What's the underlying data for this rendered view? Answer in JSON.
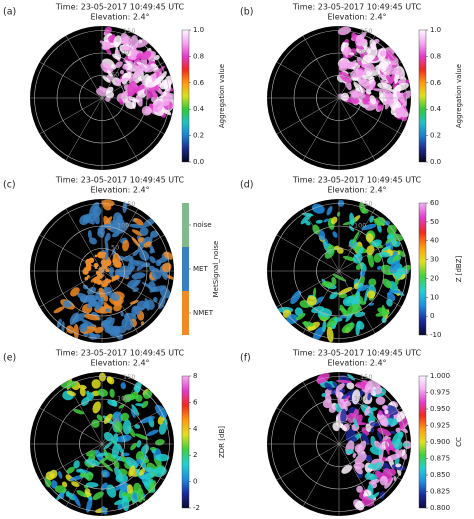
{
  "panels": [
    {
      "label": "(a)",
      "title": "Time: 23-05-2017 10:49:45 UTC",
      "subtitle": "Elevation: 2.4°",
      "rings": [
        50,
        100,
        150
      ],
      "rlim": [
        0,
        160
      ],
      "colorbar": {
        "label": "Aggregation value",
        "lim": [
          0,
          1
        ],
        "ticks": [
          {
            "value": 0,
            "label": "0.0"
          },
          {
            "value": 0.2,
            "label": "0.2"
          },
          {
            "value": 0.4,
            "label": "0.4"
          },
          {
            "value": 0.6,
            "label": "0.6"
          },
          {
            "value": 0.8,
            "label": "0.8"
          },
          {
            "value": 1,
            "label": "1.0"
          }
        ],
        "colors": [
          "#05051a",
          "#1c2a8c",
          "#1f7fd0",
          "#22c0c0",
          "#34c83c",
          "#d8e020",
          "#ff9a10",
          "#f02a20",
          "#e03cc8",
          "#f4a8f0",
          "#fff4ff"
        ]
      }
    },
    {
      "label": "(b)",
      "title": "Time: 23-05-2017 10:49:45 UTC",
      "subtitle": "Elevation: 2.4°",
      "rings": [
        50,
        100,
        150
      ],
      "rlim": [
        0,
        160
      ],
      "colorbar": {
        "label": "Aggregation value",
        "lim": [
          0,
          1
        ],
        "ticks": [
          {
            "value": 0,
            "label": "0.0"
          },
          {
            "value": 0.2,
            "label": "0.2"
          },
          {
            "value": 0.4,
            "label": "0.4"
          },
          {
            "value": 0.6,
            "label": "0.6"
          },
          {
            "value": 0.8,
            "label": "0.8"
          },
          {
            "value": 1,
            "label": "1.0"
          }
        ],
        "colors": [
          "#05051a",
          "#1c2a8c",
          "#1f7fd0",
          "#22c0c0",
          "#34c83c",
          "#d8e020",
          "#ff9a10",
          "#f02a20",
          "#e03cc8",
          "#f4a8f0",
          "#fff4ff"
        ]
      }
    },
    {
      "label": "(c)",
      "title": "Time: 23-05-2017 10:49:45 UTC",
      "subtitle": "Elevation: 2.4°",
      "rings": [
        50,
        100,
        150
      ],
      "rlim": [
        0,
        160
      ],
      "colorbar": {
        "label": "MetSignal_noise",
        "classes": [
          {
            "name": "NMET",
            "color": "#f08a24"
          },
          {
            "name": "MET",
            "color": "#3a7fc0"
          },
          {
            "name": "noise",
            "color": "#82b98a"
          }
        ]
      }
    },
    {
      "label": "(d)",
      "title": "Time: 23-05-2017 10:49:45 UTC",
      "subtitle": "Elevation: 2.4°",
      "rings": [
        50,
        100,
        150
      ],
      "rlim": [
        0,
        160
      ],
      "colorbar": {
        "label": "Z [dBZ]",
        "lim": [
          -10,
          60
        ],
        "ticks": [
          -10,
          0,
          10,
          20,
          30,
          40,
          50,
          60
        ],
        "colors": [
          "#0a0a30",
          "#1c2a9c",
          "#1f8fe0",
          "#22d0d0",
          "#40d040",
          "#e0e020",
          "#ff9a10",
          "#f02a20",
          "#e03cc8",
          "#f4b0f4"
        ]
      }
    },
    {
      "label": "(e)",
      "title": "Time: 23-05-2017 10:49:45 UTC",
      "subtitle": "Elevation: 2.4°",
      "rings": [
        50,
        100,
        150
      ],
      "rlim": [
        0,
        160
      ],
      "colorbar": {
        "label": "ZDR [dB]",
        "lim": [
          -2,
          8
        ],
        "ticks": [
          -2,
          0,
          2,
          4,
          6,
          8
        ],
        "colors": [
          "#0a0a30",
          "#1c2a9c",
          "#1f8fe0",
          "#22d0d0",
          "#40d040",
          "#e0e020",
          "#ff9a10",
          "#f02a20",
          "#e03cc8",
          "#f4b0f4"
        ]
      }
    },
    {
      "label": "(f)",
      "title": "Time: 23-05-2017 10:49:45 UTC",
      "subtitle": "Elevation: 2.4°",
      "rings": [
        50,
        100,
        150
      ],
      "rlim": [
        0,
        160
      ],
      "colorbar": {
        "label": "CC",
        "lim": [
          0.8,
          1
        ],
        "ticks": [
          {
            "value": 0.8,
            "label": "0.800"
          },
          {
            "value": 0.825,
            "label": "0.825"
          },
          {
            "value": 0.85,
            "label": "0.850"
          },
          {
            "value": 0.875,
            "label": "0.875"
          },
          {
            "value": 0.9,
            "label": "0.900"
          },
          {
            "value": 0.925,
            "label": "0.925"
          },
          {
            "value": 0.95,
            "label": "0.950"
          },
          {
            "value": 0.975,
            "label": "0.975"
          },
          {
            "value": 1,
            "label": "1.000"
          }
        ],
        "colors": [
          "#0a0a40",
          "#1c2a9c",
          "#1f8fe0",
          "#22d0d0",
          "#40d040",
          "#e0e020",
          "#ff9a10",
          "#f02a20",
          "#e03cc8",
          "#f4b0f4",
          "#fff4ff"
        ]
      }
    }
  ]
}
